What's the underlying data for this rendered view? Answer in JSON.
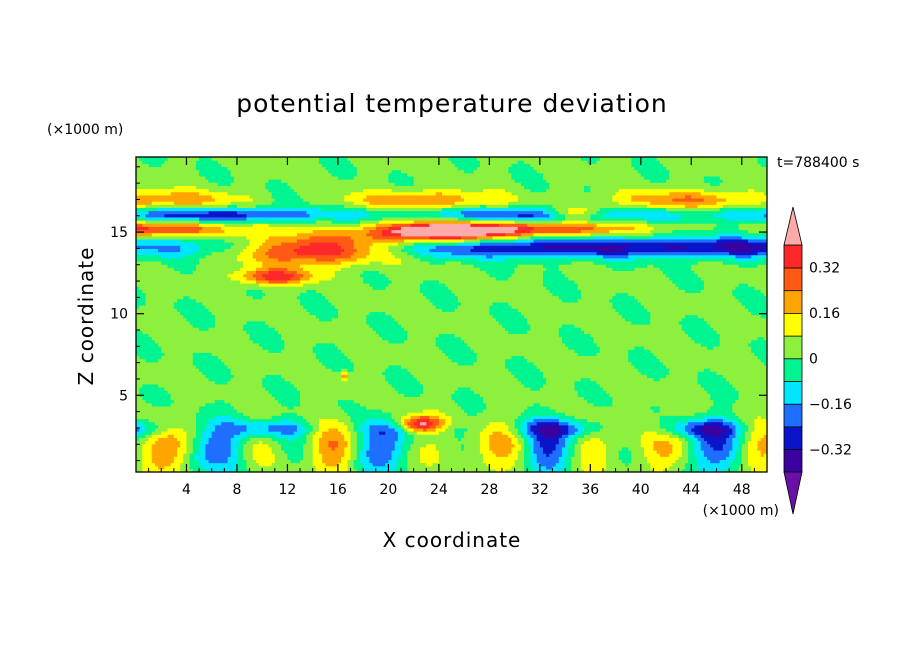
{
  "chart_data": {
    "type": "heatmap",
    "title": "potential temperature deviation",
    "xlabel": "X coordinate",
    "ylabel": "Z coordinate",
    "x_unit": "(×1000 m)",
    "y_unit": "(×1000 m)",
    "time_label": "t=788400 s",
    "xlim": [
      0,
      50
    ],
    "ylim": [
      0.3,
      19.6
    ],
    "x_ticks": [
      4,
      8,
      12,
      16,
      20,
      24,
      28,
      32,
      36,
      40,
      44,
      48
    ],
    "x_tick_labels": [
      "4",
      "8",
      "12",
      "16",
      "20",
      "24",
      "28",
      "32",
      "36",
      "40",
      "44",
      "48"
    ],
    "y_ticks": [
      5,
      10,
      15
    ],
    "y_tick_labels": [
      "5",
      "10",
      "15"
    ],
    "colorbar": {
      "levels": [
        -0.4,
        -0.32,
        -0.24,
        -0.16,
        -0.08,
        0,
        0.08,
        0.16,
        0.24,
        0.32,
        0.4
      ],
      "colors": [
        "#6a0fa8",
        "#3a00a0",
        "#0a14c8",
        "#1e6eff",
        "#00e6ff",
        "#00f590",
        "#8cf03c",
        "#ffff00",
        "#ffa500",
        "#ff5a14",
        "#ff2828",
        "#ffaaaa"
      ],
      "labels": [
        "0.32",
        "0.16",
        "0",
        "−0.16",
        "−0.32"
      ],
      "label_values": [
        0.32,
        0.16,
        0,
        -0.16,
        -0.32
      ]
    },
    "features": [
      {
        "kind": "band",
        "x": [
          0,
          50
        ],
        "z": [
          13.5,
          16.5
        ],
        "value": -0.35
      },
      {
        "kind": "blob",
        "x": [
          8,
          28
        ],
        "z": [
          12.5,
          15.5
        ],
        "value": 0.45
      },
      {
        "kind": "blob",
        "x": [
          21,
          25
        ],
        "z": [
          2.5,
          4
        ],
        "value": 0.45
      },
      {
        "kind": "band",
        "x": [
          0,
          50
        ],
        "z": [
          0.3,
          3.7
        ],
        "value": -0.2
      }
    ]
  }
}
